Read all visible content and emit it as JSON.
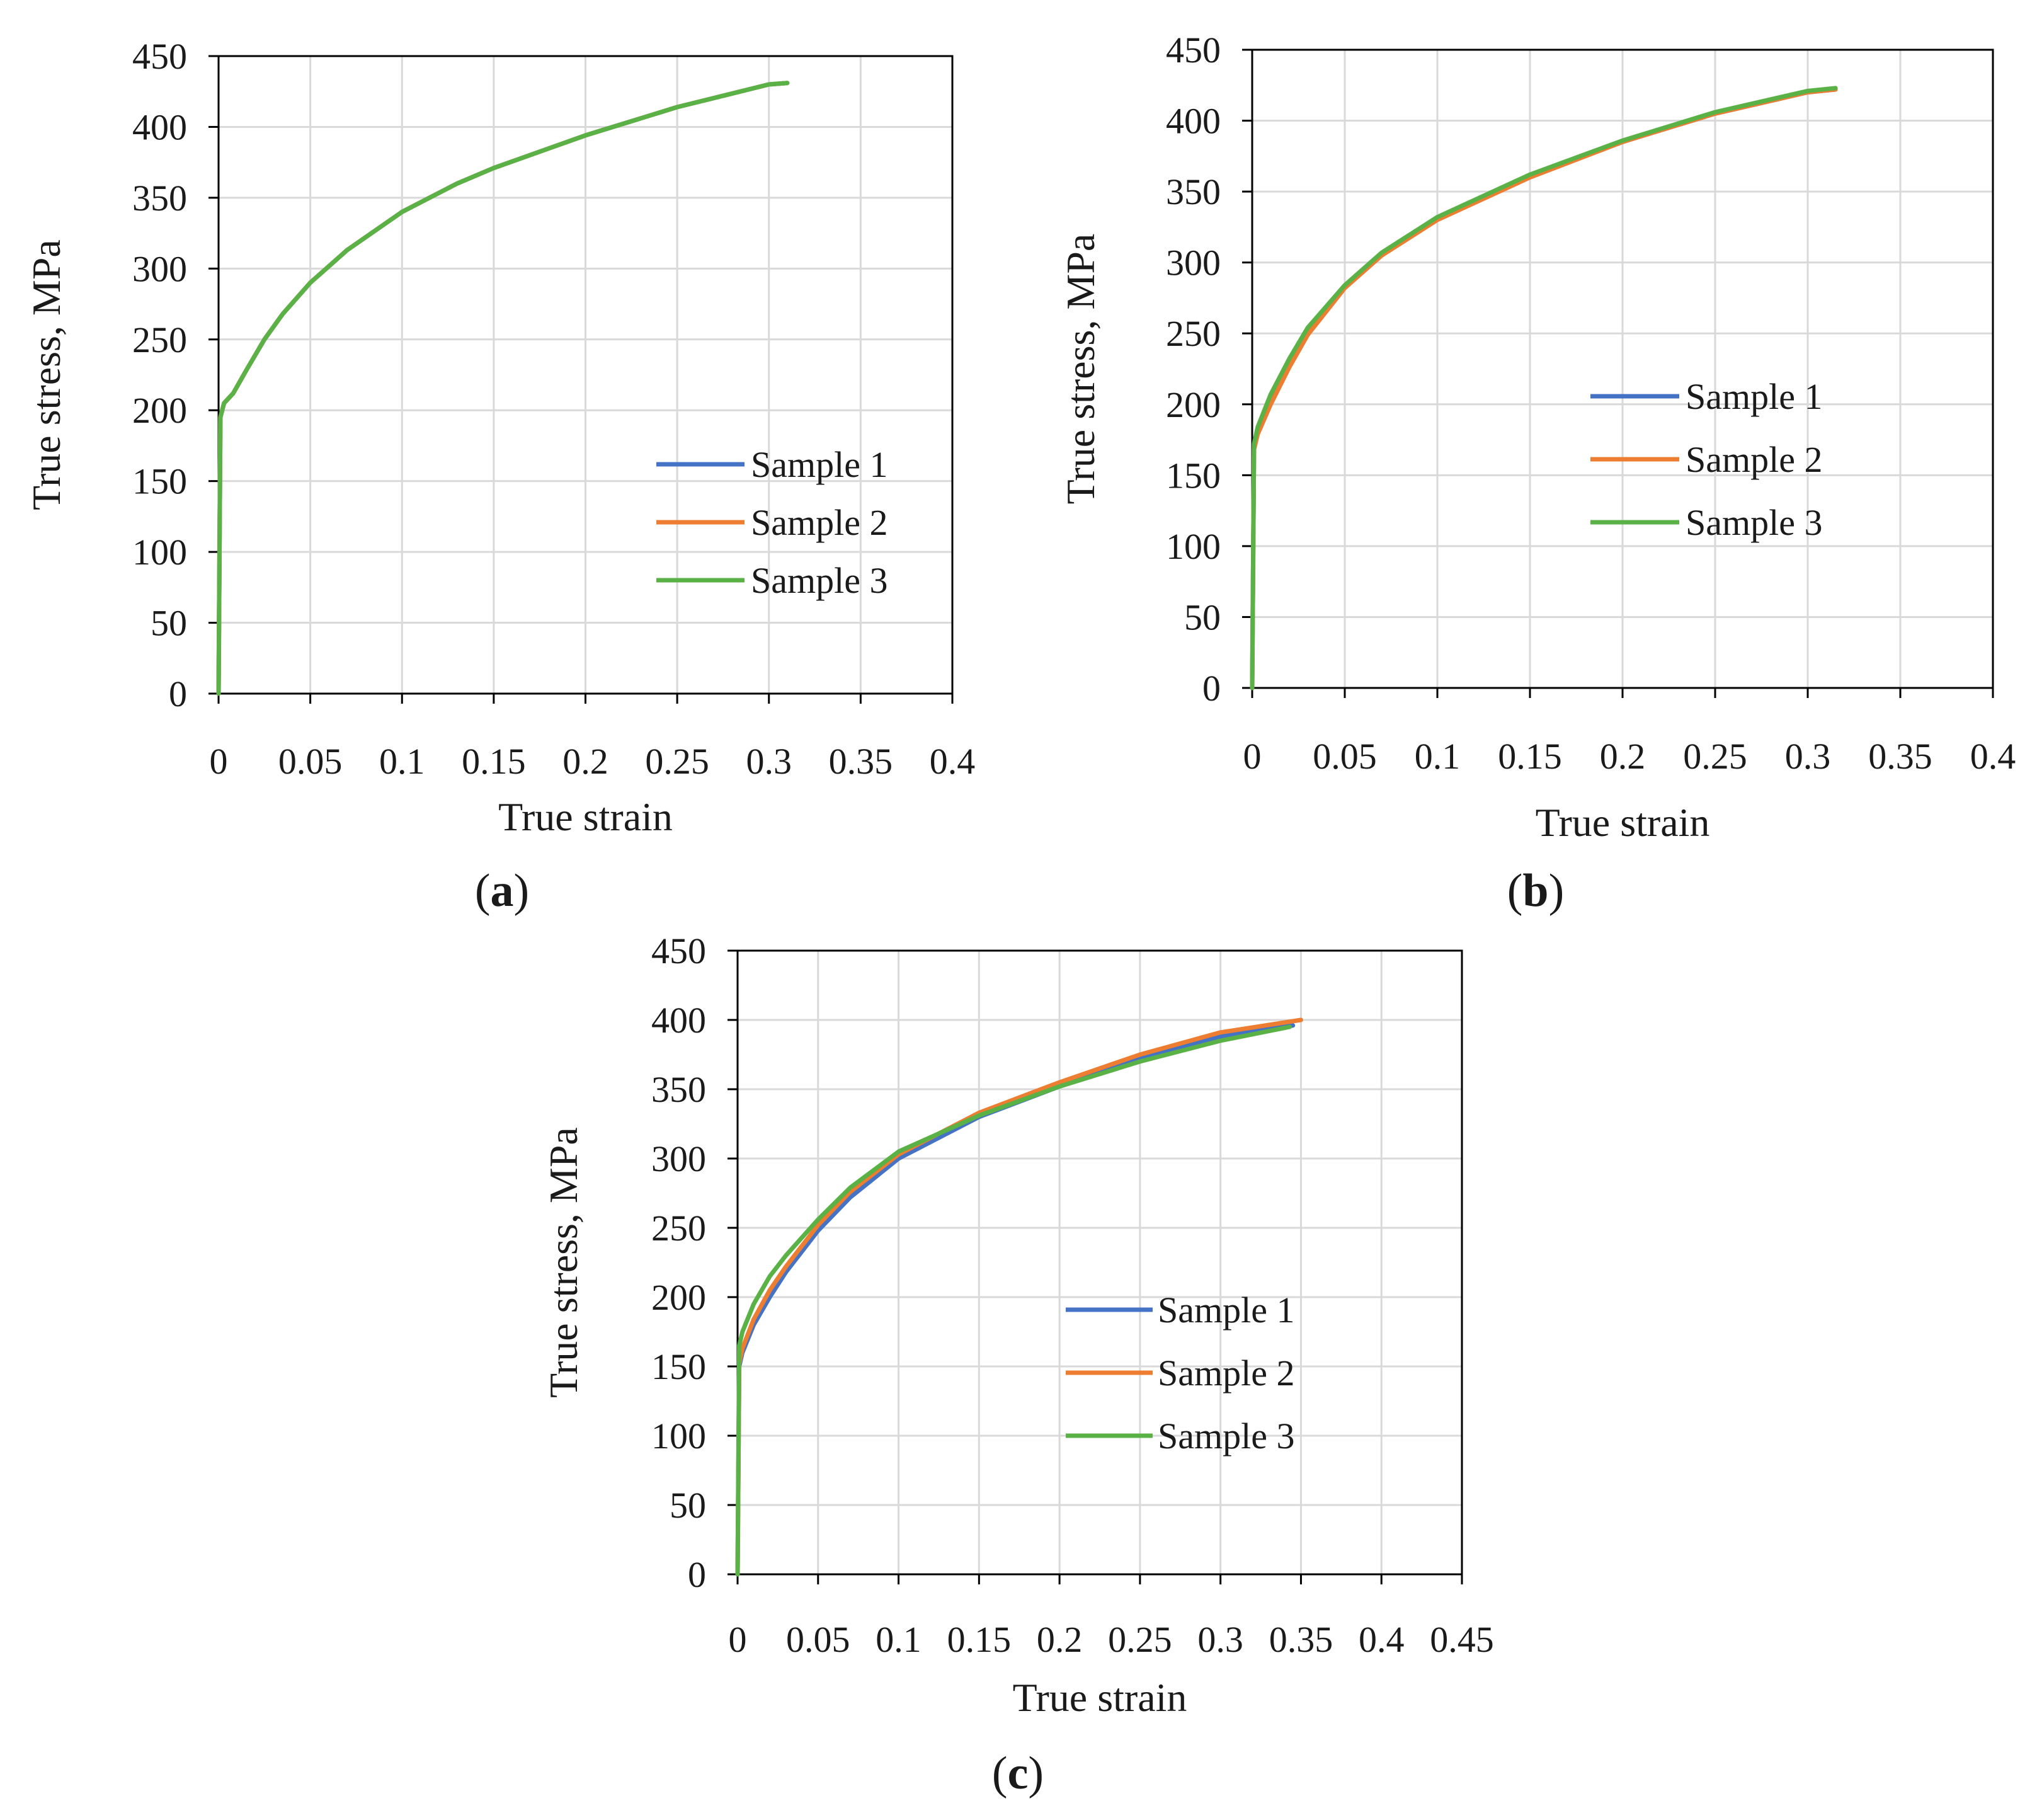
{
  "colors": {
    "sample1": "#4472c4",
    "sample2": "#ed7d31",
    "sample3": "#5ab246"
  },
  "chart_data": [
    {
      "id": "a",
      "type": "line",
      "panel_label": "a",
      "xlabel": "True strain",
      "ylabel": "True stress, MPa",
      "xlim": [
        0,
        0.4
      ],
      "ylim": [
        0,
        450
      ],
      "xticks": [
        0,
        0.05,
        0.1,
        0.15,
        0.2,
        0.25,
        0.3,
        0.35,
        0.4
      ],
      "xtick_labels": [
        "0",
        "0.05",
        "0.1",
        "0.15",
        "0.2",
        "0.25",
        "0.3",
        "0.35",
        "0.4"
      ],
      "yticks": [
        0,
        50,
        100,
        150,
        200,
        250,
        300,
        350,
        400,
        450
      ],
      "ytick_labels": [
        "0",
        "50",
        "100",
        "150",
        "200",
        "250",
        "300",
        "350",
        "400",
        "450"
      ],
      "legend_position": "bottom-right",
      "series": [
        {
          "name": "Sample 1",
          "color_key": "sample1",
          "x": [
            0,
            0.001,
            0.003,
            0.008,
            0.015,
            0.025,
            0.035,
            0.05,
            0.07,
            0.1,
            0.13,
            0.15,
            0.2,
            0.25,
            0.3,
            0.31
          ],
          "y": [
            0,
            195,
            205,
            212,
            228,
            250,
            268,
            290,
            313,
            340,
            360,
            371,
            394,
            414,
            430,
            431
          ]
        },
        {
          "name": "Sample 2",
          "color_key": "sample2",
          "x": [
            0,
            0.001,
            0.003,
            0.008,
            0.015,
            0.025,
            0.035,
            0.05,
            0.07,
            0.1,
            0.13,
            0.15,
            0.2,
            0.25,
            0.3,
            0.31
          ],
          "y": [
            0,
            195,
            205,
            212,
            228,
            250,
            268,
            290,
            313,
            340,
            360,
            371,
            394,
            414,
            430,
            431
          ]
        },
        {
          "name": "Sample 3",
          "color_key": "sample3",
          "x": [
            0,
            0.001,
            0.003,
            0.008,
            0.015,
            0.025,
            0.035,
            0.05,
            0.07,
            0.1,
            0.13,
            0.15,
            0.2,
            0.25,
            0.3,
            0.31
          ],
          "y": [
            0,
            195,
            205,
            212,
            228,
            250,
            268,
            290,
            313,
            340,
            360,
            371,
            394,
            414,
            430,
            431
          ]
        }
      ]
    },
    {
      "id": "b",
      "type": "line",
      "panel_label": "b",
      "xlabel": "True strain",
      "ylabel": "True stress, MPa",
      "xlim": [
        0,
        0.4
      ],
      "ylim": [
        0,
        450
      ],
      "xticks": [
        0,
        0.05,
        0.1,
        0.15,
        0.2,
        0.25,
        0.3,
        0.35,
        0.4
      ],
      "xtick_labels": [
        "0",
        "0.05",
        "0.1",
        "0.15",
        "0.2",
        "0.25",
        "0.3",
        "0.35",
        "0.4"
      ],
      "yticks": [
        0,
        50,
        100,
        150,
        200,
        250,
        300,
        350,
        400,
        450
      ],
      "ytick_labels": [
        "0",
        "50",
        "100",
        "150",
        "200",
        "250",
        "300",
        "350",
        "400",
        "450"
      ],
      "legend_position": "center-right",
      "series": [
        {
          "name": "Sample 1",
          "color_key": "sample1",
          "x": [
            0,
            0.001,
            0.003,
            0.01,
            0.02,
            0.03,
            0.05,
            0.07,
            0.1,
            0.15,
            0.2,
            0.25,
            0.3,
            0.315
          ],
          "y": [
            0,
            170,
            182,
            205,
            230,
            252,
            283,
            306,
            331,
            361,
            385,
            405,
            420,
            422
          ]
        },
        {
          "name": "Sample 2",
          "color_key": "sample2",
          "x": [
            0,
            0.001,
            0.003,
            0.01,
            0.02,
            0.03,
            0.05,
            0.07,
            0.1,
            0.15,
            0.2,
            0.25,
            0.3,
            0.315
          ],
          "y": [
            0,
            168,
            179,
            200,
            226,
            249,
            282,
            305,
            330,
            360,
            385,
            405,
            420,
            422
          ]
        },
        {
          "name": "Sample 3",
          "color_key": "sample3",
          "x": [
            0,
            0.001,
            0.003,
            0.01,
            0.02,
            0.03,
            0.05,
            0.07,
            0.1,
            0.15,
            0.2,
            0.25,
            0.3,
            0.315
          ],
          "y": [
            0,
            172,
            184,
            207,
            232,
            254,
            284,
            307,
            332,
            362,
            386,
            406,
            421,
            423
          ]
        }
      ]
    },
    {
      "id": "c",
      "type": "line",
      "panel_label": "c",
      "xlabel": "True strain",
      "ylabel": "True stress, MPa",
      "xlim": [
        0,
        0.45
      ],
      "ylim": [
        0,
        450
      ],
      "xticks": [
        0,
        0.05,
        0.1,
        0.15,
        0.2,
        0.25,
        0.3,
        0.35,
        0.4,
        0.45
      ],
      "xtick_labels": [
        "0",
        "0.05",
        "0.1",
        "0.15",
        "0.2",
        "0.25",
        "0.3",
        "0.35",
        "0.4",
        "0.45"
      ],
      "yticks": [
        0,
        50,
        100,
        150,
        200,
        250,
        300,
        350,
        400,
        450
      ],
      "ytick_labels": [
        "0",
        "50",
        "100",
        "150",
        "200",
        "250",
        "300",
        "350",
        "400",
        "450"
      ],
      "legend_position": "bottom-right",
      "series": [
        {
          "name": "Sample 1",
          "color_key": "sample1",
          "x": [
            0,
            0.001,
            0.003,
            0.01,
            0.02,
            0.03,
            0.05,
            0.07,
            0.1,
            0.15,
            0.2,
            0.25,
            0.3,
            0.345
          ],
          "y": [
            0,
            150,
            160,
            180,
            200,
            218,
            248,
            272,
            300,
            330,
            352,
            372,
            388,
            396
          ]
        },
        {
          "name": "Sample 2",
          "color_key": "sample2",
          "x": [
            0,
            0.001,
            0.003,
            0.01,
            0.02,
            0.03,
            0.05,
            0.07,
            0.1,
            0.15,
            0.2,
            0.25,
            0.3,
            0.35
          ],
          "y": [
            0,
            152,
            163,
            184,
            205,
            222,
            252,
            276,
            303,
            333,
            355,
            375,
            391,
            400
          ]
        },
        {
          "name": "Sample 3",
          "color_key": "sample3",
          "x": [
            0,
            0.001,
            0.003,
            0.01,
            0.02,
            0.03,
            0.05,
            0.07,
            0.1,
            0.15,
            0.2,
            0.25,
            0.3,
            0.343
          ],
          "y": [
            0,
            165,
            175,
            195,
            215,
            230,
            256,
            279,
            305,
            331,
            352,
            370,
            385,
            395
          ]
        }
      ]
    }
  ]
}
